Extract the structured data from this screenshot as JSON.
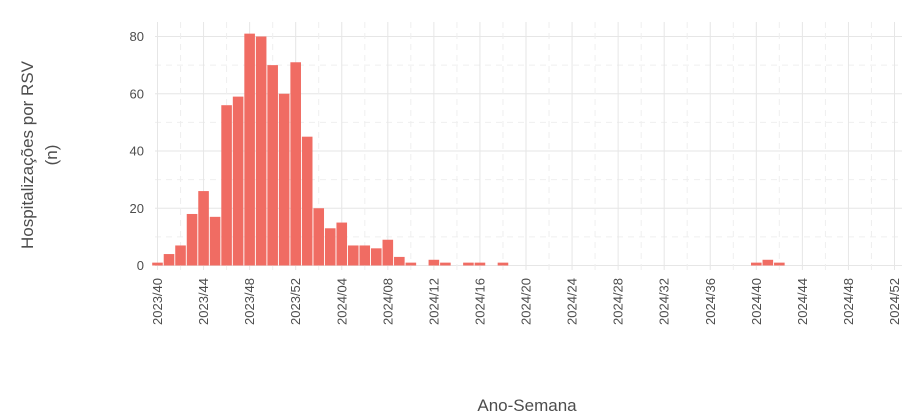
{
  "chart_data": {
    "type": "bar",
    "xlabel": "Ano-Semana",
    "ylabel_line1": "Hospitalizações por RSV",
    "ylabel_line2": "(n)",
    "ylim": [
      0,
      85
    ],
    "yticks": [
      0,
      20,
      40,
      60,
      80
    ],
    "bar_color": "#f06c63",
    "grid": true,
    "x_tick_labels": [
      "2023/40",
      "2023/44",
      "2023/48",
      "2023/52",
      "2024/04",
      "2024/08",
      "2024/12",
      "2024/16",
      "2024/20",
      "2024/24",
      "2024/28",
      "2024/32",
      "2024/36",
      "2024/40",
      "2024/44",
      "2024/48",
      "2024/52"
    ],
    "categories": [
      "2023/40",
      "2023/41",
      "2023/42",
      "2023/43",
      "2023/44",
      "2023/45",
      "2023/46",
      "2023/47",
      "2023/48",
      "2023/49",
      "2023/50",
      "2023/51",
      "2023/52",
      "2024/01",
      "2024/02",
      "2024/03",
      "2024/04",
      "2024/05",
      "2024/06",
      "2024/07",
      "2024/08",
      "2024/09",
      "2024/10",
      "2024/11",
      "2024/12",
      "2024/13",
      "2024/14",
      "2024/15",
      "2024/16",
      "2024/17",
      "2024/18",
      "2024/19",
      "2024/20",
      "2024/21",
      "2024/22",
      "2024/23",
      "2024/24",
      "2024/25",
      "2024/26",
      "2024/27",
      "2024/28",
      "2024/29",
      "2024/30",
      "2024/31",
      "2024/32",
      "2024/33",
      "2024/34",
      "2024/35",
      "2024/36",
      "2024/37",
      "2024/38",
      "2024/39",
      "2024/40",
      "2024/41",
      "2024/42",
      "2024/43",
      "2024/44",
      "2024/45",
      "2024/46",
      "2024/47",
      "2024/48",
      "2024/49",
      "2024/50",
      "2024/51",
      "2024/52"
    ],
    "values": [
      1,
      4,
      7,
      18,
      26,
      17,
      56,
      59,
      81,
      80,
      70,
      60,
      71,
      45,
      20,
      13,
      15,
      7,
      7,
      6,
      9,
      3,
      1,
      0,
      2,
      1,
      0,
      1,
      1,
      0,
      1,
      0,
      0,
      0,
      0,
      0,
      0,
      0,
      0,
      0,
      0,
      0,
      0,
      0,
      0,
      0,
      0,
      0,
      0,
      0,
      0,
      0,
      1,
      2,
      1,
      0,
      0,
      0,
      0,
      0,
      0,
      0,
      0,
      0,
      0
    ]
  }
}
